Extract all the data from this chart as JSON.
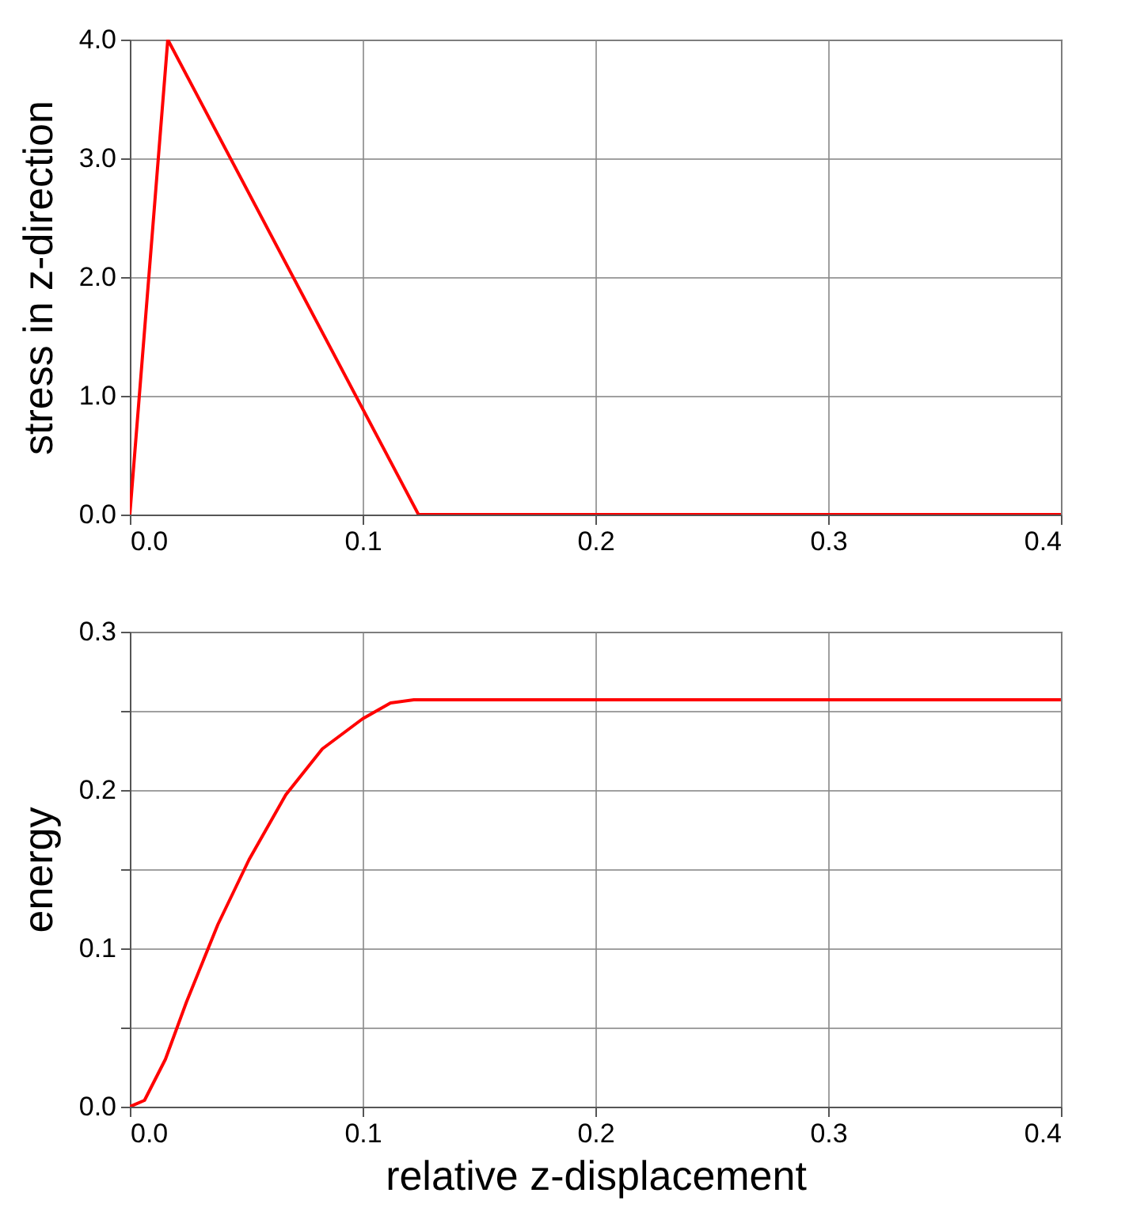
{
  "chart_data": [
    {
      "type": "line",
      "ylabel": "stress in z-direction",
      "x": [
        0,
        0.0163,
        0.124,
        0.4
      ],
      "series": [
        {
          "color": "#ff0000",
          "values": [
            0,
            4.0,
            0,
            0
          ]
        }
      ],
      "xlim": [
        0,
        0.4
      ],
      "xticks": [
        {
          "value": 0,
          "label": "0.0"
        },
        0.1,
        0.2,
        0.3,
        0.4
      ],
      "ylim": [
        0,
        4
      ],
      "yticks": [
        {
          "value": 0,
          "label": "0.0"
        },
        {
          "value": 1,
          "label": "1.0"
        },
        {
          "value": 2,
          "label": "2.0"
        },
        {
          "value": 3,
          "label": "3.0"
        },
        {
          "value": 4,
          "label": "4.0"
        }
      ],
      "grid": true,
      "line_style": "solid"
    },
    {
      "type": "line",
      "xlabel": "relative z-displacement",
      "ylabel": "energy",
      "x": [
        0,
        0.0063,
        0.0153,
        0.0243,
        0.0378,
        0.0512,
        0.067,
        0.0827,
        0.1,
        0.112,
        0.122,
        0.4
      ],
      "series": [
        {
          "color": "#ff0000",
          "values": [
            0,
            0.004,
            0.03,
            0.066,
            0.115,
            0.156,
            0.197,
            0.226,
            0.245,
            0.255,
            0.257,
            0.257
          ]
        }
      ],
      "xlim": [
        0,
        0.4
      ],
      "xticks": [
        {
          "value": 0,
          "label": "0.0"
        },
        0.1,
        0.2,
        0.3,
        0.4
      ],
      "ylim": [
        0,
        0.3
      ],
      "yticks": [
        {
          "value": 0,
          "label": "0.0"
        },
        {
          "value": 0.05,
          "label": null
        },
        0.1,
        {
          "value": 0.15,
          "label": null
        },
        0.2,
        {
          "value": 0.25,
          "label": null
        },
        0.3
      ],
      "grid": true,
      "line_style": "solid"
    }
  ]
}
